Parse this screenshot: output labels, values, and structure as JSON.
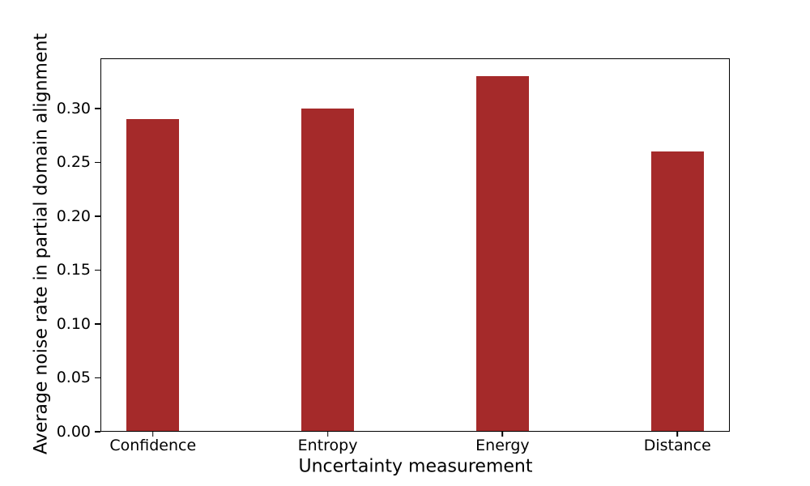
{
  "chart_data": {
    "type": "bar",
    "xlabel": "Uncertainty measurement",
    "ylabel": "Average noise rate in partial domain alignment",
    "categories": [
      "Confidence",
      "Entropy",
      "Energy",
      "Distance"
    ],
    "values": [
      0.29,
      0.3,
      0.33,
      0.26
    ],
    "yticks": [
      0.0,
      0.05,
      0.1,
      0.15,
      0.2,
      0.25,
      0.3
    ],
    "ytick_labels": [
      "0.00",
      "0.05",
      "0.10",
      "0.15",
      "0.20",
      "0.25",
      "0.30"
    ],
    "ylim": [
      0,
      0.3465
    ],
    "xlim": [
      -0.3,
      3.3
    ],
    "bar_width": 0.3,
    "bar_color": "#A52A2A",
    "spine_color": "#000000",
    "text_color": "#000000",
    "background_color": "#ffffff",
    "grid": false,
    "legend": "none"
  }
}
